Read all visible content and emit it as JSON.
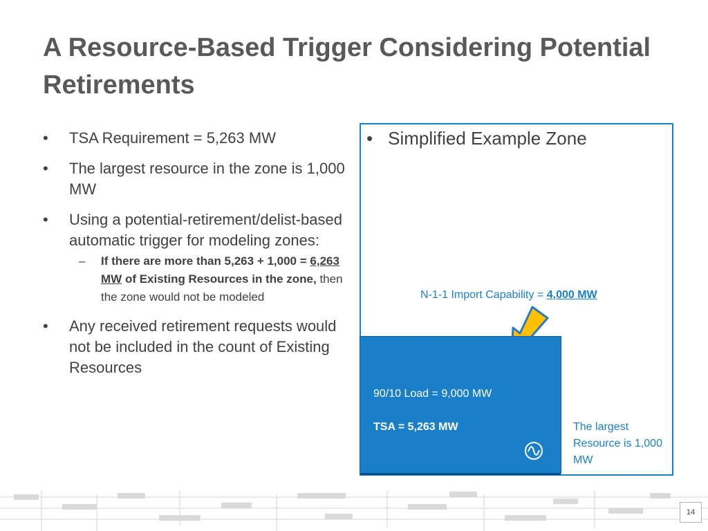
{
  "slide": {
    "title": "A Resource-Based Trigger Considering Potential Retirements",
    "page_number": "14"
  },
  "left_bullets": {
    "b1": "TSA Requirement = 5,263 MW",
    "b2": "The largest resource in the zone is 1,000 MW",
    "b3": "Using a potential-retirement/delist-based automatic trigger for modeling zones:",
    "sub_bold_1": "If there are more than 5,263 + 1,000 = ",
    "sub_bold_underlined": "6,263 MW",
    "sub_bold_2": " of Existing Resources in the zone,",
    "sub_regular": " then the zone would not be modeled",
    "b4": "Any received retirement requests would not be included in the count of Existing Resources",
    "bullet_char": "•",
    "dash_char": "–"
  },
  "example_zone": {
    "title": "Simplified Example Zone",
    "import_label": "N-1-1 Import Capability = ",
    "import_value": "4,000 MW",
    "load_label": "90/10 Load = 9,000 MW",
    "tsa_label": "TSA = 5,263 MW",
    "largest_resource_label": "The largest Resource is 1,000 MW",
    "generator_icon": "generator-icon",
    "arrow_icon": "import-arrow-icon"
  },
  "colors": {
    "accent_blue": "#1a7fc9",
    "arrow_yellow": "#ffc000",
    "title_gray": "#595959"
  }
}
